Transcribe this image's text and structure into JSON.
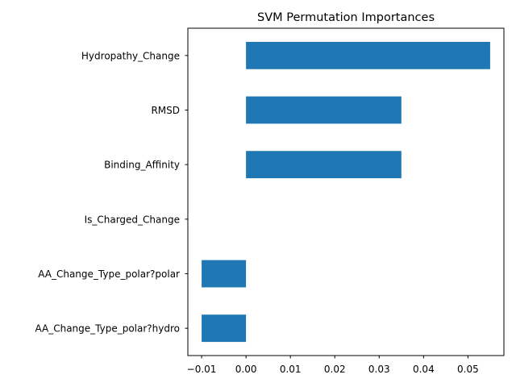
{
  "chart_data": {
    "type": "bar",
    "orientation": "horizontal",
    "title": "SVM Permutation Importances",
    "xlabel": "",
    "ylabel": "",
    "categories": [
      "Hydropathy_Change",
      "RMSD",
      "Binding_Affinity",
      "Is_Charged_Change",
      "AA_Change_Type_polar?polar",
      "AA_Change_Type_polar?hydro"
    ],
    "values": [
      0.055,
      0.035,
      0.035,
      0.0,
      -0.01,
      -0.01
    ],
    "xlim": [
      -0.0131,
      0.0581
    ],
    "xticks": [
      -0.01,
      0.0,
      0.01,
      0.02,
      0.03,
      0.04,
      0.05
    ],
    "xtick_labels": [
      "−0.01",
      "0.00",
      "0.01",
      "0.02",
      "0.03",
      "0.04",
      "0.05"
    ],
    "grid": false,
    "legend": "none",
    "bar_color": "#1f77b4"
  }
}
